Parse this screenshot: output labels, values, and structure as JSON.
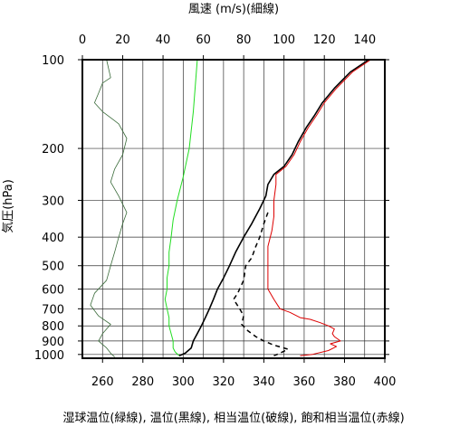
{
  "chart_data": {
    "type": "line",
    "top_axis_label": "風速 (m/s)(細線)",
    "bottom_axis_label": "湿球温位(緑線), 温位(黒線), 相当温位(破線), 飽和相当温位(赤線)",
    "ylabel": "気圧(hPa)",
    "top_axis": {
      "range": [
        0,
        150
      ],
      "ticks": [
        0,
        20,
        40,
        60,
        80,
        100,
        120,
        140
      ]
    },
    "bottom_axis": {
      "range": [
        250,
        400
      ],
      "ticks": [
        260,
        280,
        300,
        320,
        340,
        360,
        380,
        400
      ]
    },
    "y_axis": {
      "scale": "log",
      "range": [
        100,
        1030
      ],
      "reversed": true,
      "ticks": [
        100,
        200,
        300,
        400,
        500,
        600,
        700,
        800,
        900,
        1000
      ]
    },
    "grid": true,
    "series": [
      {
        "axis": "top",
        "color": "#3a6b3a",
        "style": "solid",
        "width": 0.8,
        "points": [
          [
            12,
            100
          ],
          [
            14,
            115
          ],
          [
            10,
            120
          ],
          [
            8,
            130
          ],
          [
            6,
            140
          ],
          [
            10,
            150
          ],
          [
            18,
            165
          ],
          [
            22,
            185
          ],
          [
            20,
            210
          ],
          [
            16,
            235
          ],
          [
            14,
            260
          ],
          [
            18,
            290
          ],
          [
            22,
            330
          ],
          [
            20,
            360
          ],
          [
            18,
            400
          ],
          [
            16,
            450
          ],
          [
            14,
            500
          ],
          [
            12,
            560
          ],
          [
            6,
            620
          ],
          [
            4,
            680
          ],
          [
            8,
            740
          ],
          [
            14,
            790
          ],
          [
            10,
            850
          ],
          [
            8,
            900
          ],
          [
            12,
            950
          ],
          [
            14,
            990
          ],
          [
            16,
            1020
          ]
        ]
      },
      {
        "axis": "bottom",
        "color": "#22dd22",
        "style": "solid",
        "width": 1,
        "points": [
          [
            307,
            100
          ],
          [
            305,
            150
          ],
          [
            303,
            200
          ],
          [
            300,
            250
          ],
          [
            297,
            300
          ],
          [
            295,
            350
          ],
          [
            294,
            400
          ],
          [
            293,
            450
          ],
          [
            293,
            500
          ],
          [
            292,
            550
          ],
          [
            292,
            600
          ],
          [
            291,
            650
          ],
          [
            292,
            700
          ],
          [
            293,
            750
          ],
          [
            293,
            800
          ],
          [
            294,
            850
          ],
          [
            295,
            900
          ],
          [
            295,
            950
          ],
          [
            296,
            980
          ],
          [
            298,
            1010
          ]
        ]
      },
      {
        "axis": "bottom",
        "color": "#000000",
        "style": "solid",
        "width": 1.6,
        "points": [
          [
            392,
            100
          ],
          [
            383,
            110
          ],
          [
            375,
            125
          ],
          [
            369,
            140
          ],
          [
            365,
            155
          ],
          [
            361,
            170
          ],
          [
            357,
            190
          ],
          [
            354,
            210
          ],
          [
            350,
            230
          ],
          [
            345,
            245
          ],
          [
            342,
            265
          ],
          [
            341,
            290
          ],
          [
            338,
            320
          ],
          [
            334,
            360
          ],
          [
            330,
            400
          ],
          [
            326,
            450
          ],
          [
            323,
            500
          ],
          [
            320,
            550
          ],
          [
            317,
            600
          ],
          [
            315,
            650
          ],
          [
            313,
            700
          ],
          [
            311,
            750
          ],
          [
            309,
            800
          ],
          [
            307,
            850
          ],
          [
            305,
            900
          ],
          [
            304,
            950
          ],
          [
            301,
            990
          ],
          [
            298,
            1010
          ]
        ]
      },
      {
        "axis": "bottom",
        "color": "#000000",
        "style": "dashed",
        "width": 1.5,
        "points": [
          [
            342,
            330
          ],
          [
            340,
            360
          ],
          [
            338,
            400
          ],
          [
            336,
            430
          ],
          [
            334,
            470
          ],
          [
            331,
            500
          ],
          [
            330,
            560
          ],
          [
            327,
            620
          ],
          [
            325,
            650
          ],
          [
            328,
            700
          ],
          [
            330,
            740
          ],
          [
            329,
            790
          ],
          [
            332,
            830
          ],
          [
            336,
            870
          ],
          [
            340,
            900
          ],
          [
            345,
            930
          ],
          [
            352,
            960
          ],
          [
            348,
            990
          ],
          [
            345,
            1010
          ]
        ]
      },
      {
        "axis": "bottom",
        "color": "#dd0000",
        "style": "solid",
        "width": 1,
        "points": [
          [
            393,
            100
          ],
          [
            384,
            110
          ],
          [
            376,
            125
          ],
          [
            370,
            140
          ],
          [
            366,
            155
          ],
          [
            362,
            170
          ],
          [
            358,
            190
          ],
          [
            355,
            210
          ],
          [
            351,
            230
          ],
          [
            346,
            245
          ],
          [
            346,
            265
          ],
          [
            345,
            300
          ],
          [
            345,
            340
          ],
          [
            344,
            380
          ],
          [
            342,
            430
          ],
          [
            342,
            480
          ],
          [
            342,
            550
          ],
          [
            342,
            600
          ],
          [
            345,
            650
          ],
          [
            348,
            700
          ],
          [
            353,
            720
          ],
          [
            358,
            750
          ],
          [
            363,
            760
          ],
          [
            368,
            780
          ],
          [
            372,
            800
          ],
          [
            375,
            820
          ],
          [
            374,
            850
          ],
          [
            375,
            870
          ],
          [
            378,
            900
          ],
          [
            373,
            920
          ],
          [
            376,
            940
          ],
          [
            372,
            970
          ],
          [
            364,
            1000
          ],
          [
            358,
            1010
          ]
        ]
      }
    ]
  }
}
